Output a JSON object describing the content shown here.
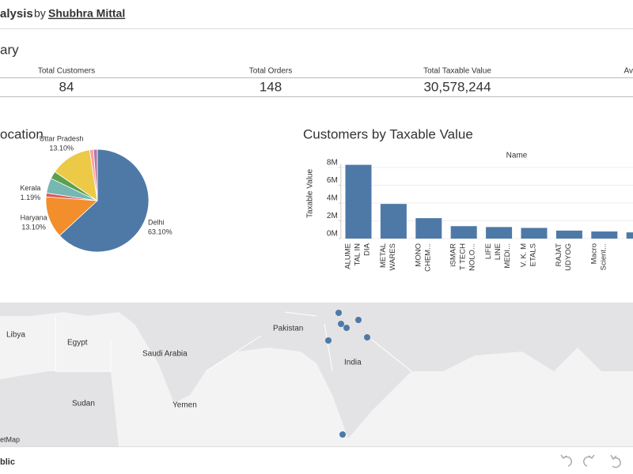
{
  "header": {
    "title": "alysis",
    "by": "by",
    "author": "Shubhra Mittal"
  },
  "summary": {
    "title": "ary",
    "kpis": [
      {
        "label": "Total Customers",
        "value": "84"
      },
      {
        "label": "Total Orders",
        "value": "148"
      },
      {
        "label": "Total Taxable Value",
        "value": "30,578,244"
      },
      {
        "label": "Av",
        "value": null
      }
    ]
  },
  "chart_data": [
    {
      "type": "pie",
      "title": "ocation",
      "categories": [
        "Delhi",
        "Haryana",
        "Kerala",
        null,
        null,
        "Uttar Pradesh",
        null,
        null
      ],
      "values": [
        63.1,
        13.1,
        1.19,
        4.76,
        2.38,
        13.1,
        1.19,
        1.19
      ],
      "value_labels": [
        "63.10%",
        "13.10%",
        "1.19%",
        null,
        null,
        "13.10%",
        null,
        null
      ],
      "colors": [
        "#4e79a7",
        "#f28e2b",
        "#e15759",
        "#76b7b2",
        "#59a14f",
        "#edc948",
        "#ff9da7",
        "#b07aa1"
      ]
    },
    {
      "type": "bar",
      "title": "Customers by Taxable Value",
      "header": "Name",
      "y_label": "Taxable Value",
      "categories": [
        [
          "ALUME",
          "TAL IN",
          "DIA"
        ],
        [
          "METAL",
          "WARES"
        ],
        [
          "MONO",
          "CHEM..."
        ],
        [
          "iSMAR",
          "T TECH",
          "NOLO..."
        ],
        [
          "LIFE",
          "LINE",
          "MEDI..."
        ],
        [
          "V. K. M",
          "ETALS"
        ],
        [
          "RAJAT",
          "UDYOG"
        ],
        [
          "Macro",
          "Scient..."
        ],
        null
      ],
      "values": [
        8300000,
        3900000,
        2300000,
        1400000,
        1300000,
        1200000,
        900000,
        800000,
        700000
      ],
      "color": "#4e79a7",
      "ylim": [
        0,
        8400000
      ],
      "yticks": [
        {
          "value": 0,
          "label": "0M"
        },
        {
          "value": 2000000,
          "label": "2M"
        },
        {
          "value": 4000000,
          "label": "4M"
        },
        {
          "value": 6000000,
          "label": "6M"
        },
        {
          "value": 8000000,
          "label": "8M"
        }
      ],
      "grid": true
    }
  ],
  "map": {
    "labels": [
      "Libya",
      "Egypt",
      "Saudi Arabia",
      "Pakistan",
      "India",
      "Yemen",
      "Sudan"
    ],
    "attribution": "etMap"
  },
  "footer": {
    "text": "blic"
  }
}
